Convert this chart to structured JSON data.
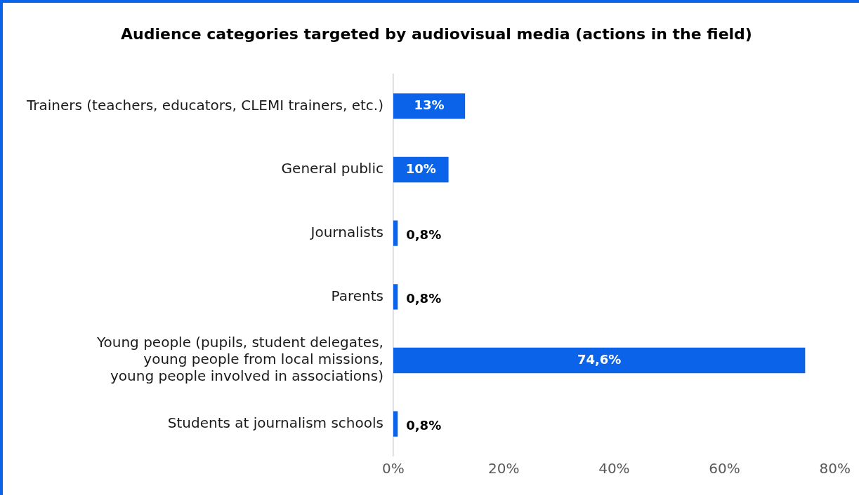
{
  "chart_data": {
    "type": "bar",
    "orientation": "horizontal",
    "title": "Audience categories targeted by audiovisual media (actions in the field)",
    "categories": [
      "Trainers (teachers, educators, CLEMI trainers, etc.)",
      "General public",
      "Journalists",
      "Parents",
      "Young people (pupils, student delegates,\nyoung people from local missions,\nyoung people involved in associations)",
      "Students at journalism schools"
    ],
    "values": [
      13,
      10,
      0.8,
      0.8,
      74.6,
      0.8
    ],
    "value_labels": [
      "13%",
      "10%",
      "0,8%",
      "0,8%",
      "74,6%",
      "0,8%"
    ],
    "color": "#0a63e8",
    "xlim": [
      0,
      80
    ],
    "xticks": [
      {
        "value": 0,
        "label": "0%"
      },
      {
        "value": 20,
        "label": "20%"
      },
      {
        "value": 40,
        "label": "40%"
      },
      {
        "value": 60,
        "label": "60%"
      },
      {
        "value": 80,
        "label": "80%"
      }
    ],
    "grid": false,
    "legend": false
  }
}
